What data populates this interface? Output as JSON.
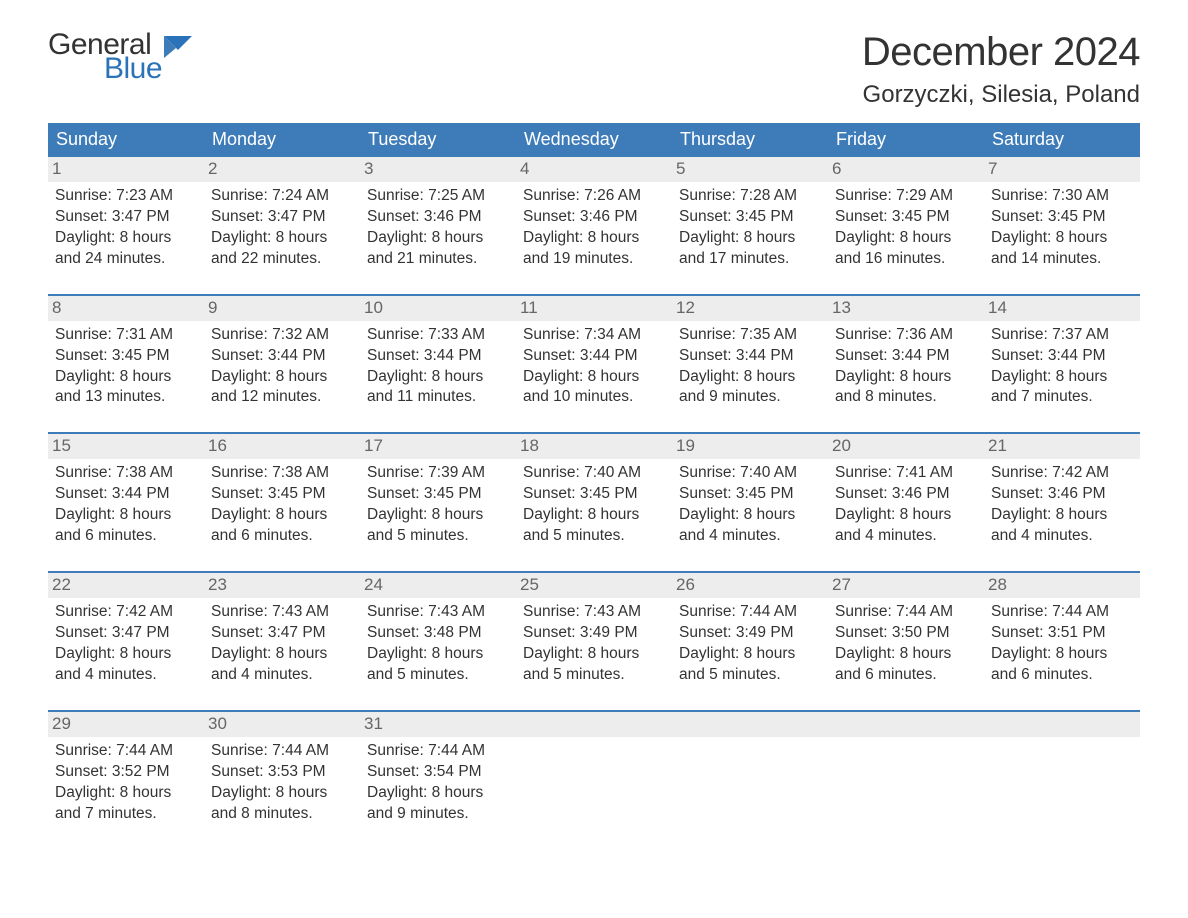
{
  "brand": {
    "general": "General",
    "blue": "Blue"
  },
  "header": {
    "month_title": "December 2024",
    "location": "Gorzyczki, Silesia, Poland"
  },
  "colors": {
    "header_bg": "#3d7cb9",
    "header_text": "#ffffff",
    "daynum_bg": "#ededed",
    "daynum_text": "#666666",
    "body_text": "#333333",
    "accent": "#2b73b8",
    "page_bg": "#ffffff"
  },
  "days_of_week": [
    "Sunday",
    "Monday",
    "Tuesday",
    "Wednesday",
    "Thursday",
    "Friday",
    "Saturday"
  ],
  "weeks": [
    [
      {
        "n": "1",
        "sr": "Sunrise: 7:23 AM",
        "ss": "Sunset: 3:47 PM",
        "d1": "Daylight: 8 hours",
        "d2": "and 24 minutes."
      },
      {
        "n": "2",
        "sr": "Sunrise: 7:24 AM",
        "ss": "Sunset: 3:47 PM",
        "d1": "Daylight: 8 hours",
        "d2": "and 22 minutes."
      },
      {
        "n": "3",
        "sr": "Sunrise: 7:25 AM",
        "ss": "Sunset: 3:46 PM",
        "d1": "Daylight: 8 hours",
        "d2": "and 21 minutes."
      },
      {
        "n": "4",
        "sr": "Sunrise: 7:26 AM",
        "ss": "Sunset: 3:46 PM",
        "d1": "Daylight: 8 hours",
        "d2": "and 19 minutes."
      },
      {
        "n": "5",
        "sr": "Sunrise: 7:28 AM",
        "ss": "Sunset: 3:45 PM",
        "d1": "Daylight: 8 hours",
        "d2": "and 17 minutes."
      },
      {
        "n": "6",
        "sr": "Sunrise: 7:29 AM",
        "ss": "Sunset: 3:45 PM",
        "d1": "Daylight: 8 hours",
        "d2": "and 16 minutes."
      },
      {
        "n": "7",
        "sr": "Sunrise: 7:30 AM",
        "ss": "Sunset: 3:45 PM",
        "d1": "Daylight: 8 hours",
        "d2": "and 14 minutes."
      }
    ],
    [
      {
        "n": "8",
        "sr": "Sunrise: 7:31 AM",
        "ss": "Sunset: 3:45 PM",
        "d1": "Daylight: 8 hours",
        "d2": "and 13 minutes."
      },
      {
        "n": "9",
        "sr": "Sunrise: 7:32 AM",
        "ss": "Sunset: 3:44 PM",
        "d1": "Daylight: 8 hours",
        "d2": "and 12 minutes."
      },
      {
        "n": "10",
        "sr": "Sunrise: 7:33 AM",
        "ss": "Sunset: 3:44 PM",
        "d1": "Daylight: 8 hours",
        "d2": "and 11 minutes."
      },
      {
        "n": "11",
        "sr": "Sunrise: 7:34 AM",
        "ss": "Sunset: 3:44 PM",
        "d1": "Daylight: 8 hours",
        "d2": "and 10 minutes."
      },
      {
        "n": "12",
        "sr": "Sunrise: 7:35 AM",
        "ss": "Sunset: 3:44 PM",
        "d1": "Daylight: 8 hours",
        "d2": "and 9 minutes."
      },
      {
        "n": "13",
        "sr": "Sunrise: 7:36 AM",
        "ss": "Sunset: 3:44 PM",
        "d1": "Daylight: 8 hours",
        "d2": "and 8 minutes."
      },
      {
        "n": "14",
        "sr": "Sunrise: 7:37 AM",
        "ss": "Sunset: 3:44 PM",
        "d1": "Daylight: 8 hours",
        "d2": "and 7 minutes."
      }
    ],
    [
      {
        "n": "15",
        "sr": "Sunrise: 7:38 AM",
        "ss": "Sunset: 3:44 PM",
        "d1": "Daylight: 8 hours",
        "d2": "and 6 minutes."
      },
      {
        "n": "16",
        "sr": "Sunrise: 7:38 AM",
        "ss": "Sunset: 3:45 PM",
        "d1": "Daylight: 8 hours",
        "d2": "and 6 minutes."
      },
      {
        "n": "17",
        "sr": "Sunrise: 7:39 AM",
        "ss": "Sunset: 3:45 PM",
        "d1": "Daylight: 8 hours",
        "d2": "and 5 minutes."
      },
      {
        "n": "18",
        "sr": "Sunrise: 7:40 AM",
        "ss": "Sunset: 3:45 PM",
        "d1": "Daylight: 8 hours",
        "d2": "and 5 minutes."
      },
      {
        "n": "19",
        "sr": "Sunrise: 7:40 AM",
        "ss": "Sunset: 3:45 PM",
        "d1": "Daylight: 8 hours",
        "d2": "and 4 minutes."
      },
      {
        "n": "20",
        "sr": "Sunrise: 7:41 AM",
        "ss": "Sunset: 3:46 PM",
        "d1": "Daylight: 8 hours",
        "d2": "and 4 minutes."
      },
      {
        "n": "21",
        "sr": "Sunrise: 7:42 AM",
        "ss": "Sunset: 3:46 PM",
        "d1": "Daylight: 8 hours",
        "d2": "and 4 minutes."
      }
    ],
    [
      {
        "n": "22",
        "sr": "Sunrise: 7:42 AM",
        "ss": "Sunset: 3:47 PM",
        "d1": "Daylight: 8 hours",
        "d2": "and 4 minutes."
      },
      {
        "n": "23",
        "sr": "Sunrise: 7:43 AM",
        "ss": "Sunset: 3:47 PM",
        "d1": "Daylight: 8 hours",
        "d2": "and 4 minutes."
      },
      {
        "n": "24",
        "sr": "Sunrise: 7:43 AM",
        "ss": "Sunset: 3:48 PM",
        "d1": "Daylight: 8 hours",
        "d2": "and 5 minutes."
      },
      {
        "n": "25",
        "sr": "Sunrise: 7:43 AM",
        "ss": "Sunset: 3:49 PM",
        "d1": "Daylight: 8 hours",
        "d2": "and 5 minutes."
      },
      {
        "n": "26",
        "sr": "Sunrise: 7:44 AM",
        "ss": "Sunset: 3:49 PM",
        "d1": "Daylight: 8 hours",
        "d2": "and 5 minutes."
      },
      {
        "n": "27",
        "sr": "Sunrise: 7:44 AM",
        "ss": "Sunset: 3:50 PM",
        "d1": "Daylight: 8 hours",
        "d2": "and 6 minutes."
      },
      {
        "n": "28",
        "sr": "Sunrise: 7:44 AM",
        "ss": "Sunset: 3:51 PM",
        "d1": "Daylight: 8 hours",
        "d2": "and 6 minutes."
      }
    ],
    [
      {
        "n": "29",
        "sr": "Sunrise: 7:44 AM",
        "ss": "Sunset: 3:52 PM",
        "d1": "Daylight: 8 hours",
        "d2": "and 7 minutes."
      },
      {
        "n": "30",
        "sr": "Sunrise: 7:44 AM",
        "ss": "Sunset: 3:53 PM",
        "d1": "Daylight: 8 hours",
        "d2": "and 8 minutes."
      },
      {
        "n": "31",
        "sr": "Sunrise: 7:44 AM",
        "ss": "Sunset: 3:54 PM",
        "d1": "Daylight: 8 hours",
        "d2": "and 9 minutes."
      },
      {
        "n": "",
        "sr": "",
        "ss": "",
        "d1": "",
        "d2": ""
      },
      {
        "n": "",
        "sr": "",
        "ss": "",
        "d1": "",
        "d2": ""
      },
      {
        "n": "",
        "sr": "",
        "ss": "",
        "d1": "",
        "d2": ""
      },
      {
        "n": "",
        "sr": "",
        "ss": "",
        "d1": "",
        "d2": ""
      }
    ]
  ]
}
